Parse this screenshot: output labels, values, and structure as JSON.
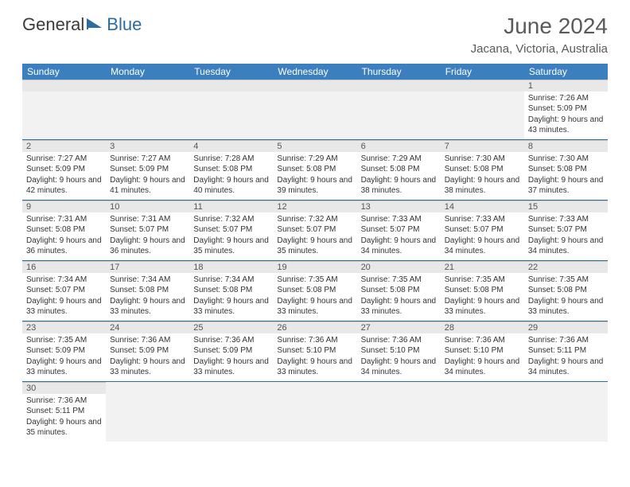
{
  "logo": {
    "part1": "General",
    "part2": "Blue"
  },
  "title": {
    "month": "June 2024",
    "location": "Jacana, Victoria, Australia"
  },
  "weekdays": [
    "Sunday",
    "Monday",
    "Tuesday",
    "Wednesday",
    "Thursday",
    "Friday",
    "Saturday"
  ],
  "colors": {
    "header_bg": "#3b7fbf",
    "header_text": "#ffffff",
    "row_divider": "#2f6aa8",
    "dayhead_bg": "#e8e8e8",
    "empty_bg": "#f2f2f2",
    "text": "#333333"
  },
  "month_meta": {
    "year": 2024,
    "month": 6,
    "first_weekday": 6,
    "days_in_month": 30
  },
  "days": {
    "1": {
      "sunrise": "7:26 AM",
      "sunset": "5:09 PM",
      "daylight": "9 hours and 43 minutes."
    },
    "2": {
      "sunrise": "7:27 AM",
      "sunset": "5:09 PM",
      "daylight": "9 hours and 42 minutes."
    },
    "3": {
      "sunrise": "7:27 AM",
      "sunset": "5:09 PM",
      "daylight": "9 hours and 41 minutes."
    },
    "4": {
      "sunrise": "7:28 AM",
      "sunset": "5:08 PM",
      "daylight": "9 hours and 40 minutes."
    },
    "5": {
      "sunrise": "7:29 AM",
      "sunset": "5:08 PM",
      "daylight": "9 hours and 39 minutes."
    },
    "6": {
      "sunrise": "7:29 AM",
      "sunset": "5:08 PM",
      "daylight": "9 hours and 38 minutes."
    },
    "7": {
      "sunrise": "7:30 AM",
      "sunset": "5:08 PM",
      "daylight": "9 hours and 38 minutes."
    },
    "8": {
      "sunrise": "7:30 AM",
      "sunset": "5:08 PM",
      "daylight": "9 hours and 37 minutes."
    },
    "9": {
      "sunrise": "7:31 AM",
      "sunset": "5:08 PM",
      "daylight": "9 hours and 36 minutes."
    },
    "10": {
      "sunrise": "7:31 AM",
      "sunset": "5:07 PM",
      "daylight": "9 hours and 36 minutes."
    },
    "11": {
      "sunrise": "7:32 AM",
      "sunset": "5:07 PM",
      "daylight": "9 hours and 35 minutes."
    },
    "12": {
      "sunrise": "7:32 AM",
      "sunset": "5:07 PM",
      "daylight": "9 hours and 35 minutes."
    },
    "13": {
      "sunrise": "7:33 AM",
      "sunset": "5:07 PM",
      "daylight": "9 hours and 34 minutes."
    },
    "14": {
      "sunrise": "7:33 AM",
      "sunset": "5:07 PM",
      "daylight": "9 hours and 34 minutes."
    },
    "15": {
      "sunrise": "7:33 AM",
      "sunset": "5:07 PM",
      "daylight": "9 hours and 34 minutes."
    },
    "16": {
      "sunrise": "7:34 AM",
      "sunset": "5:07 PM",
      "daylight": "9 hours and 33 minutes."
    },
    "17": {
      "sunrise": "7:34 AM",
      "sunset": "5:08 PM",
      "daylight": "9 hours and 33 minutes."
    },
    "18": {
      "sunrise": "7:34 AM",
      "sunset": "5:08 PM",
      "daylight": "9 hours and 33 minutes."
    },
    "19": {
      "sunrise": "7:35 AM",
      "sunset": "5:08 PM",
      "daylight": "9 hours and 33 minutes."
    },
    "20": {
      "sunrise": "7:35 AM",
      "sunset": "5:08 PM",
      "daylight": "9 hours and 33 minutes."
    },
    "21": {
      "sunrise": "7:35 AM",
      "sunset": "5:08 PM",
      "daylight": "9 hours and 33 minutes."
    },
    "22": {
      "sunrise": "7:35 AM",
      "sunset": "5:08 PM",
      "daylight": "9 hours and 33 minutes."
    },
    "23": {
      "sunrise": "7:35 AM",
      "sunset": "5:09 PM",
      "daylight": "9 hours and 33 minutes."
    },
    "24": {
      "sunrise": "7:36 AM",
      "sunset": "5:09 PM",
      "daylight": "9 hours and 33 minutes."
    },
    "25": {
      "sunrise": "7:36 AM",
      "sunset": "5:09 PM",
      "daylight": "9 hours and 33 minutes."
    },
    "26": {
      "sunrise": "7:36 AM",
      "sunset": "5:10 PM",
      "daylight": "9 hours and 33 minutes."
    },
    "27": {
      "sunrise": "7:36 AM",
      "sunset": "5:10 PM",
      "daylight": "9 hours and 34 minutes."
    },
    "28": {
      "sunrise": "7:36 AM",
      "sunset": "5:10 PM",
      "daylight": "9 hours and 34 minutes."
    },
    "29": {
      "sunrise": "7:36 AM",
      "sunset": "5:11 PM",
      "daylight": "9 hours and 34 minutes."
    },
    "30": {
      "sunrise": "7:36 AM",
      "sunset": "5:11 PM",
      "daylight": "9 hours and 35 minutes."
    }
  },
  "labels": {
    "sunrise": "Sunrise: ",
    "sunset": "Sunset: ",
    "daylight": "Daylight: "
  }
}
